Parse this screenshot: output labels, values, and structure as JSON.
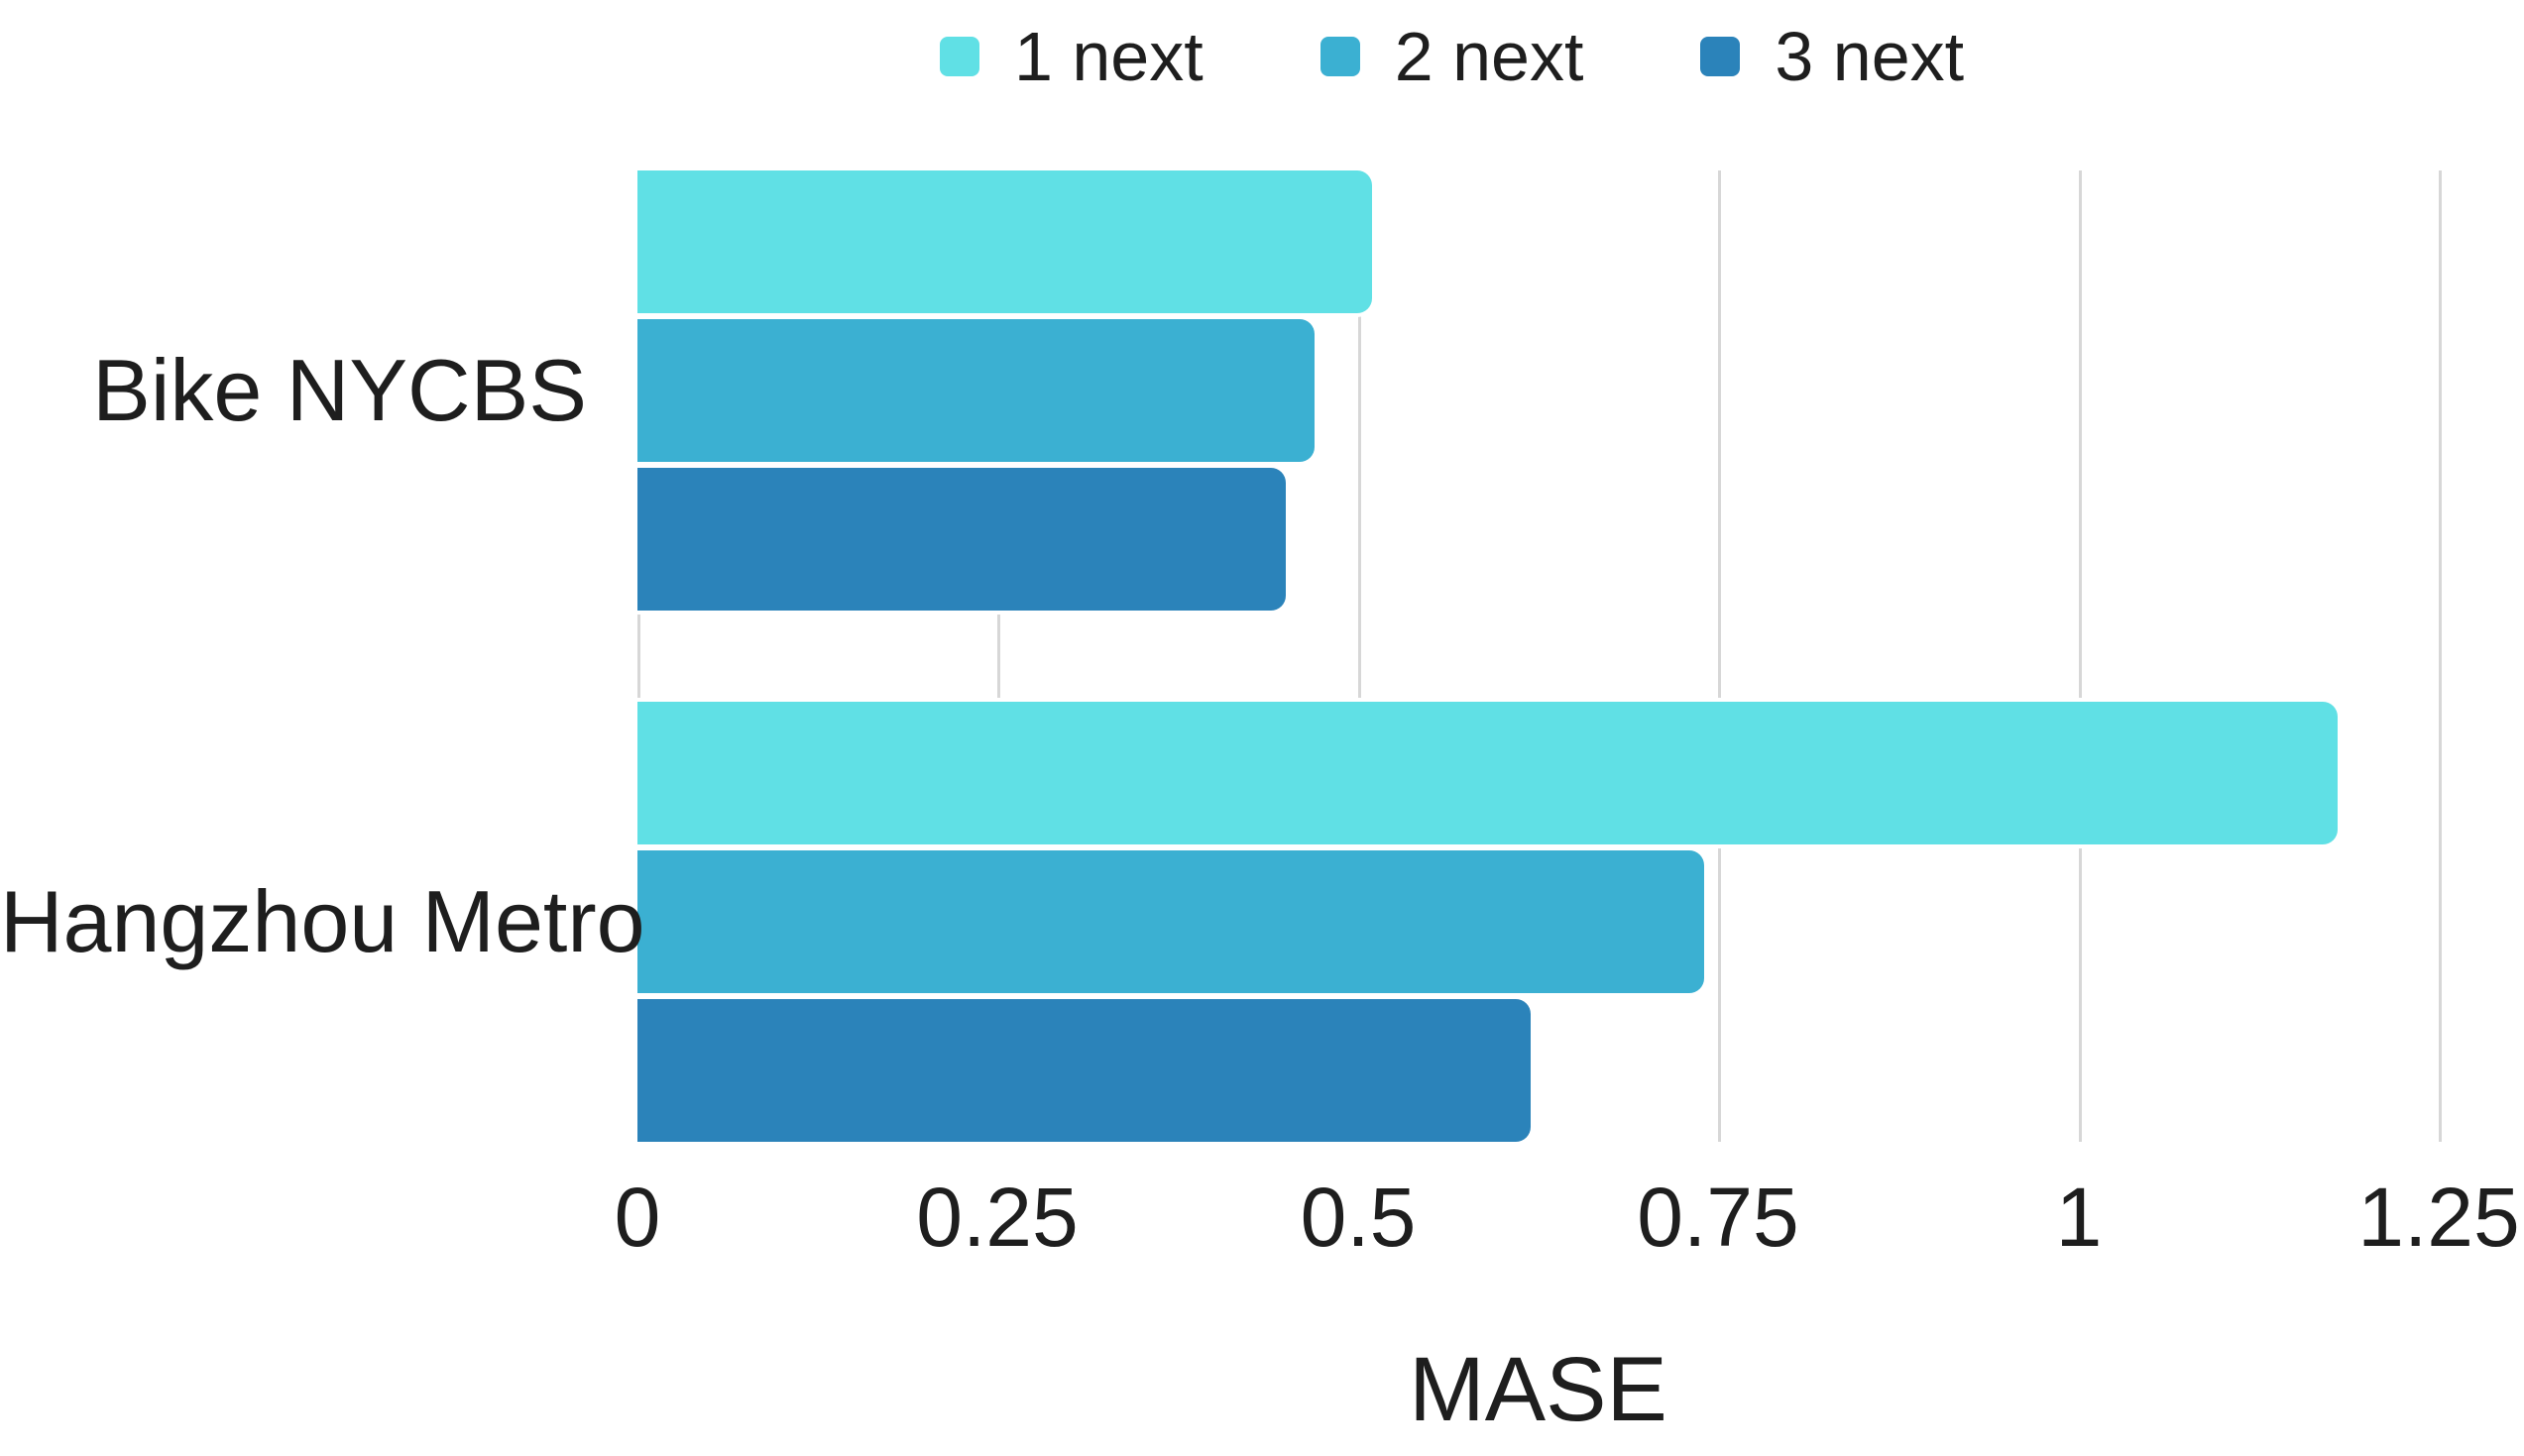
{
  "chart_data": {
    "type": "bar",
    "orientation": "horizontal",
    "title": "",
    "xlabel": "MASE",
    "ylabel": "",
    "categories": [
      "Bike NYCBS",
      "Hangzhou Metro"
    ],
    "series": [
      {
        "name": "1 next",
        "color": "#60E0E5",
        "values": [
          0.51,
          1.18
        ]
      },
      {
        "name": "2 next",
        "color": "#3BB0D2",
        "values": [
          0.47,
          0.74
        ]
      },
      {
        "name": "3 next",
        "color": "#2B83BA",
        "values": [
          0.45,
          0.62
        ]
      }
    ],
    "xlim": [
      0,
      1.25
    ],
    "xticks": [
      0,
      0.25,
      0.5,
      0.75,
      1,
      1.25
    ],
    "xtick_labels": [
      "0",
      "0.25",
      "0.5",
      "0.75",
      "1",
      "1.25"
    ],
    "legend_position": "top",
    "legend_labels": [
      "1 next",
      "2 next",
      "3 next"
    ],
    "grid": "vertical",
    "colors": {
      "gridline": "#D7D7D7",
      "text": "#1E1E1E",
      "background": "#FFFFFF"
    }
  }
}
